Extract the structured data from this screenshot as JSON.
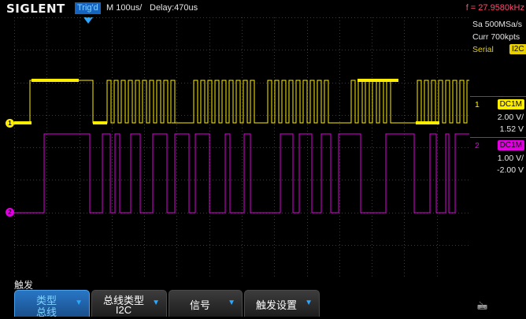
{
  "header": {
    "brand": "SIGLENT",
    "trigger_status": "Trig'd",
    "timebase": "M 100us/",
    "delay": "Delay:470us",
    "frequency": "f = 27.9580kHz"
  },
  "acquisition": {
    "sample_rate": "Sa 500MSa/s",
    "curr_points": "Curr 700kpts",
    "serial_label": "Serial",
    "serial_protocol": "I2C"
  },
  "channels": [
    {
      "number": "1",
      "coupling": "DC1M",
      "scale": "2.00 V/",
      "offset": "1.52 V",
      "color": "#ffee00"
    },
    {
      "number": "2",
      "coupling": "DC1M",
      "scale": "1.00 V/",
      "offset": "-2.00 V",
      "color": "#e000e0"
    }
  ],
  "menu": {
    "title": "触发",
    "buttons": [
      {
        "label": "类型",
        "value": "总线",
        "active": true
      },
      {
        "label": "总线类型",
        "value": "I2C",
        "active": false
      },
      {
        "label": "信号",
        "value": "",
        "active": false
      },
      {
        "label": "触发设置",
        "value": "",
        "active": false
      }
    ]
  },
  "colors": {
    "ch1": "#ffee00",
    "ch2": "#e000e0",
    "accent_blue": "#2aa7ff",
    "frequency_text": "#ff4b6e",
    "grid": "#3a3a3a"
  },
  "icons": {
    "usb": "usb-icon",
    "arrow": "down-arrow-icon"
  }
}
